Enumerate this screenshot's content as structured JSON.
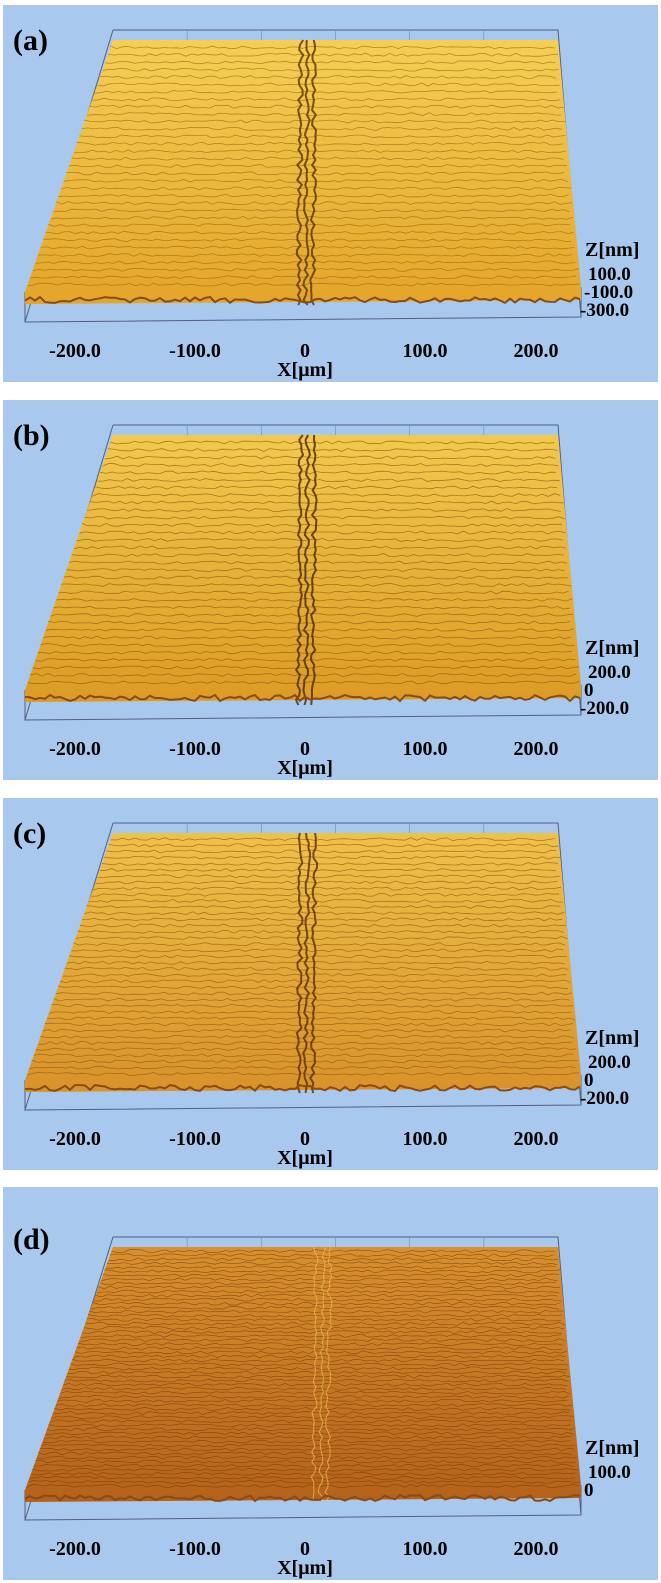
{
  "panels": [
    {
      "label": "(a)",
      "x_title": "X[μm]",
      "x_ticks": [
        "-200.0",
        "-100.0",
        "0",
        "100.0",
        "200.0"
      ],
      "z_title": "Z[nm]",
      "z_ticks": [
        "100.0",
        "-100.0",
        "-300.0"
      ]
    },
    {
      "label": "(b)",
      "x_title": "X[μm]",
      "x_ticks": [
        "-200.0",
        "-100.0",
        "0",
        "100.0",
        "200.0"
      ],
      "z_title": "Z[nm]",
      "z_ticks": [
        "200.0",
        "0",
        "-200.0"
      ]
    },
    {
      "label": "(c)",
      "x_title": "X[μm]",
      "x_ticks": [
        "-200.0",
        "-100.0",
        "0",
        "100.0",
        "200.0"
      ],
      "z_title": "Z[nm]",
      "z_ticks": [
        "200.0",
        "0",
        "-200.0"
      ]
    },
    {
      "label": "(d)",
      "x_title": "X[μm]",
      "x_ticks": [
        "-200.0",
        "-100.0",
        "0",
        "100.0",
        "200.0"
      ],
      "z_title": "Z[nm]",
      "z_ticks": [
        "100.0",
        "0"
      ]
    }
  ]
}
